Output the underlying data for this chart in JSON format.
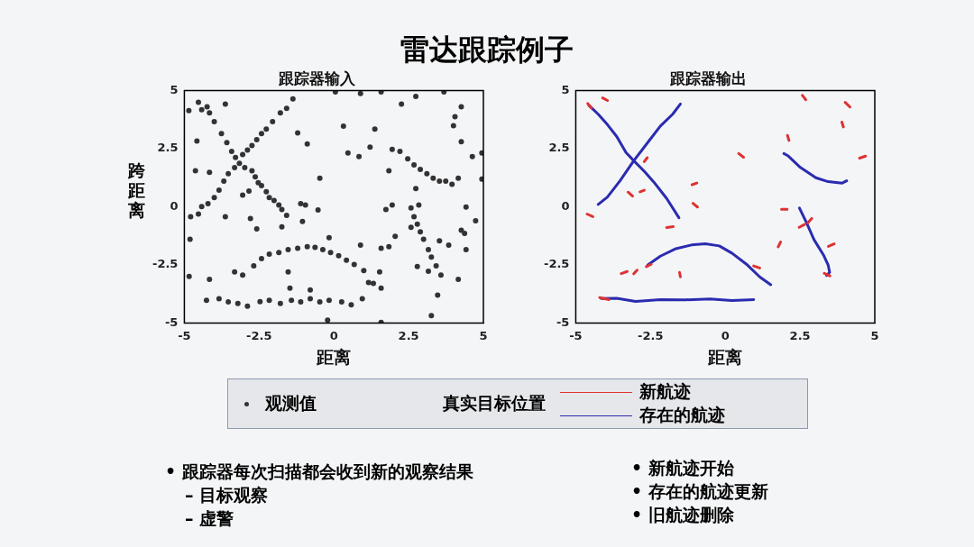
{
  "chart_data": [
    {
      "type": "scatter",
      "title": "跟踪器输入",
      "xlabel": "距离",
      "ylabel": "跨距离",
      "xlim": [
        -5,
        5
      ],
      "ylim": [
        -5,
        5
      ],
      "xticks": [
        -5,
        -2.5,
        0,
        2.5,
        5
      ],
      "yticks": [
        -5,
        -2.5,
        0,
        2.5,
        5
      ],
      "marker": "circle",
      "legend": "bottom",
      "series": [
        {
          "name": "观测值",
          "color": "#333333",
          "x": [
            -4.85,
            -4.53,
            -4.42,
            -4.24,
            -4.16,
            -4.0,
            -3.76,
            -3.58,
            -3.42,
            -3.29,
            -3.16,
            -2.98,
            -2.74,
            -2.63,
            -2.53,
            -2.42,
            -2.26,
            -2.16,
            -2.0,
            -1.84,
            -1.74,
            -1.58,
            -4.53,
            -4.42,
            -4.21,
            -4.0,
            -3.84,
            -3.68,
            -3.53,
            -3.32,
            -3.05,
            -2.89,
            -2.74,
            -2.58,
            -2.42,
            -2.26,
            -2.05,
            -1.79,
            -1.58,
            -1.37,
            -2.68,
            -2.42,
            -2.16,
            -1.84,
            -1.53,
            -1.21,
            -0.89,
            -0.63,
            -0.37,
            -0.11,
            0.16,
            0.42,
            0.68,
            1.0,
            1.16,
            1.32,
            -4.26,
            -3.84,
            -3.53,
            -3.21,
            -2.89,
            -2.47,
            -2.16,
            -1.79,
            -1.42,
            -1.11,
            -0.79,
            -0.47,
            -0.16,
            0.26,
            0.58,
            0.95,
            1.95,
            2.21,
            2.47,
            2.68,
            2.89,
            3.11,
            3.32,
            3.53,
            3.74,
            3.95,
            4.16,
            2.58,
            2.68,
            2.79,
            2.89,
            3.0,
            3.16,
            3.26,
            3.42,
            3.58,
            0.32,
            1.37,
            -1.21,
            -0.89,
            0.47,
            0.84,
            1.21,
            1.84,
            -0.47,
            -1.11,
            -0.95,
            -0.53,
            -1.05,
            -1.74,
            -0.16,
            0.89,
            1.84,
            1.58,
            2.05,
            -1.53,
            -3.05,
            -4.16,
            -4.84,
            -4.81,
            -4.79,
            -4.63,
            -4.16,
            -4.58,
            -3.63,
            0.05,
            0.89,
            1.58,
            2.26,
            2.74,
            3.68,
            4.26,
            4.05,
            4.0,
            4.26,
            4.63,
            4.95,
            4.95,
            4.42,
            4.74,
            4.26,
            4.37,
            4.42,
            4.16,
            3.47,
            3.26,
            3.84,
            3.53,
            2.79,
            3.16,
            1.74,
            1.95,
            -0.21,
            1.58,
            2.58,
            2.84,
            2.74,
            -2.84,
            -3.05,
            -3.63,
            -2.79,
            -2.58,
            -3.32,
            -0.79,
            -1.47,
            1.58,
            1.53
          ],
          "values": [
            4.13,
            4.49,
            4.17,
            4.3,
            4.04,
            3.66,
            3.15,
            2.76,
            2.38,
            2.12,
            1.87,
            1.68,
            1.55,
            1.29,
            1.04,
            0.91,
            0.65,
            0.4,
            0.27,
            0.08,
            -0.12,
            -0.37,
            -0.31,
            0.01,
            0.14,
            0.4,
            0.72,
            1.1,
            1.42,
            1.68,
            2.25,
            2.44,
            2.63,
            2.89,
            3.15,
            3.34,
            3.66,
            4.04,
            4.23,
            4.64,
            -2.54,
            -2.23,
            -2.03,
            -1.97,
            -1.84,
            -1.78,
            -1.71,
            -1.74,
            -1.84,
            -1.97,
            -2.1,
            -2.29,
            -2.48,
            -2.74,
            -3.25,
            -3.29,
            -4.02,
            -3.95,
            -4.09,
            -4.15,
            -4.27,
            -4.08,
            -4.02,
            -4.15,
            -4.02,
            -4.09,
            -3.95,
            -4.09,
            -4.02,
            -4.09,
            -4.21,
            -3.95,
            2.47,
            2.38,
            2.06,
            1.8,
            1.61,
            1.42,
            1.23,
            1.1,
            1.1,
            0.97,
            1.23,
            -0.05,
            -0.43,
            -0.75,
            -1.07,
            -1.39,
            -1.84,
            -2.16,
            -2.54,
            -2.93,
            3.47,
            3.34,
            3.18,
            2.7,
            2.31,
            2.16,
            2.57,
            1.55,
            1.23,
            0.14,
            0.08,
            -0.14,
            -0.63,
            -0.86,
            -1.33,
            -1.65,
            -1.71,
            -1.78,
            -1.27,
            -2.8,
            -2.93,
            -3.12,
            -2.99,
            -1.39,
            -0.43,
            1.55,
            1.48,
            2.83,
            4.42,
            4.94,
            4.87,
            4.94,
            4.42,
            4.74,
            4.94,
            4.3,
            3.87,
            3.49,
            2.8,
            2.16,
            1.19,
            2.31,
            -0.01,
            -0.6,
            -1.01,
            -1.14,
            -1.84,
            -3.12,
            -3.8,
            -4.68,
            -1.65,
            -1.46,
            -2.57,
            -2.77,
            -0.12,
            0.08,
            -4.87,
            -4.97,
            -0.88,
            0.08,
            0.78,
            0.68,
            0.5,
            -0.43,
            -0.5,
            -0.95,
            -2.8,
            -3.57,
            -3.5,
            -3.5,
            -2.8
          ]
        }
      ]
    },
    {
      "type": "line",
      "title": "跟踪器输出",
      "xlabel": "距离",
      "xlim": [
        -5,
        5
      ],
      "ylim": [
        -5,
        5
      ],
      "xticks": [
        -5,
        -2.5,
        0,
        2.5,
        5
      ],
      "yticks": [
        -5,
        -2.5,
        0,
        2.5,
        5
      ],
      "marker": "none",
      "line_style": "solid",
      "legend": "bottom",
      "legend_title": "真实目标位置",
      "series": [
        {
          "name": "新航迹",
          "color": "#dd3333",
          "x": [
            -4.6,
            -4.48,
            null,
            -4.1,
            -3.94,
            null,
            4.01,
            4.17,
            null,
            2.58,
            2.69,
            null,
            3.9,
            3.95,
            null,
            2.08,
            2.13,
            null,
            0.45,
            0.61,
            null,
            4.49,
            4.69,
            null,
            -2.71,
            -2.61,
            null,
            -3.25,
            -3.1,
            null,
            -2.85,
            -2.71,
            null,
            -1.11,
            -0.95,
            null,
            -1.08,
            -0.93,
            null,
            -4.62,
            -4.43,
            null,
            -1.96,
            -1.74,
            null,
            1.88,
            2.07,
            null,
            2.47,
            2.65,
            null,
            2.76,
            2.89,
            null,
            1.77,
            1.85,
            null,
            3.45,
            3.64,
            null,
            -3.48,
            -3.28,
            null,
            -3.06,
            -2.95,
            null,
            -2.64,
            -2.48,
            null,
            -1.53,
            -1.5,
            null,
            0.95,
            1.15,
            null,
            3.31,
            3.5,
            null,
            -4.2,
            -3.89
          ],
          "values": [
            4.44,
            4.25,
            null,
            4.68,
            4.57,
            null,
            4.49,
            4.29,
            null,
            4.79,
            4.6,
            null,
            3.64,
            3.43,
            null,
            3.07,
            2.85,
            null,
            2.29,
            2.13,
            null,
            2.09,
            2.18,
            null,
            1.94,
            2.11,
            null,
            0.63,
            0.46,
            null,
            0.64,
            0.71,
            null,
            0.95,
            1.02,
            null,
            0.15,
            -0.01,
            null,
            -0.31,
            -0.42,
            null,
            -0.89,
            -0.85,
            null,
            -0.11,
            -0.11,
            null,
            -0.88,
            -0.76,
            null,
            -0.69,
            -0.5,
            null,
            -1.72,
            -1.51,
            null,
            -1.7,
            -1.59,
            null,
            -2.87,
            -2.78,
            null,
            -2.88,
            -2.72,
            null,
            -2.57,
            -2.47,
            null,
            -2.82,
            -3.01,
            null,
            -2.54,
            -2.63,
            null,
            -2.86,
            -2.97,
            null,
            -3.9,
            -3.99
          ]
        },
        {
          "name": "存在的航迹",
          "color": "#2b2bb0",
          "x": [
            -4.56,
            -4.25,
            -3.94,
            -3.63,
            -3.32,
            -3.06,
            -2.69,
            -2.38,
            -1.96,
            -1.55,
            null,
            -4.25,
            -3.94,
            -3.52,
            -3.06,
            -2.59,
            -2.17,
            -1.76,
            -1.5,
            null,
            -2.59,
            -2.17,
            -1.65,
            -1.13,
            -0.67,
            -0.2,
            0.22,
            0.74,
            1.15,
            1.52,
            null,
            -4.15,
            -3.63,
            -3.0,
            -2.17,
            -1.34,
            -0.51,
            0.22,
            0.95,
            null,
            1.96,
            2.09,
            2.51,
            3.03,
            3.44,
            3.91,
            4.06,
            null,
            2.48,
            2.71,
            2.97,
            3.28,
            3.44,
            3.49,
            3.39
          ],
          "values": [
            4.36,
            3.98,
            3.53,
            3.02,
            2.33,
            1.98,
            1.5,
            1.05,
            0.36,
            -0.47,
            null,
            0.1,
            0.42,
            1.12,
            1.98,
            2.77,
            3.47,
            3.98,
            4.42,
            null,
            -2.5,
            -2.12,
            -1.8,
            -1.64,
            -1.59,
            -1.68,
            -1.99,
            -2.5,
            -3.01,
            -3.35,
            null,
            -3.94,
            -3.93,
            -4.07,
            -3.99,
            -4.0,
            -3.96,
            -4.03,
            -3.99,
            null,
            2.29,
            2.2,
            1.69,
            1.25,
            1.08,
            1.02,
            1.12,
            null,
            -0.05,
            -0.66,
            -1.42,
            -2.06,
            -2.5,
            -2.82,
            -2.95
          ]
        }
      ]
    },
    {
      "type": "other",
      "title": "雷达跟踪例子",
      "annotations": [
        "• 跟踪器每次扫描都会收到新的观察结果",
        "– 目标观察",
        "– 虚警",
        "• 新航迹开始",
        "• 存在的航迹更新",
        "• 旧航迹删除"
      ]
    }
  ]
}
